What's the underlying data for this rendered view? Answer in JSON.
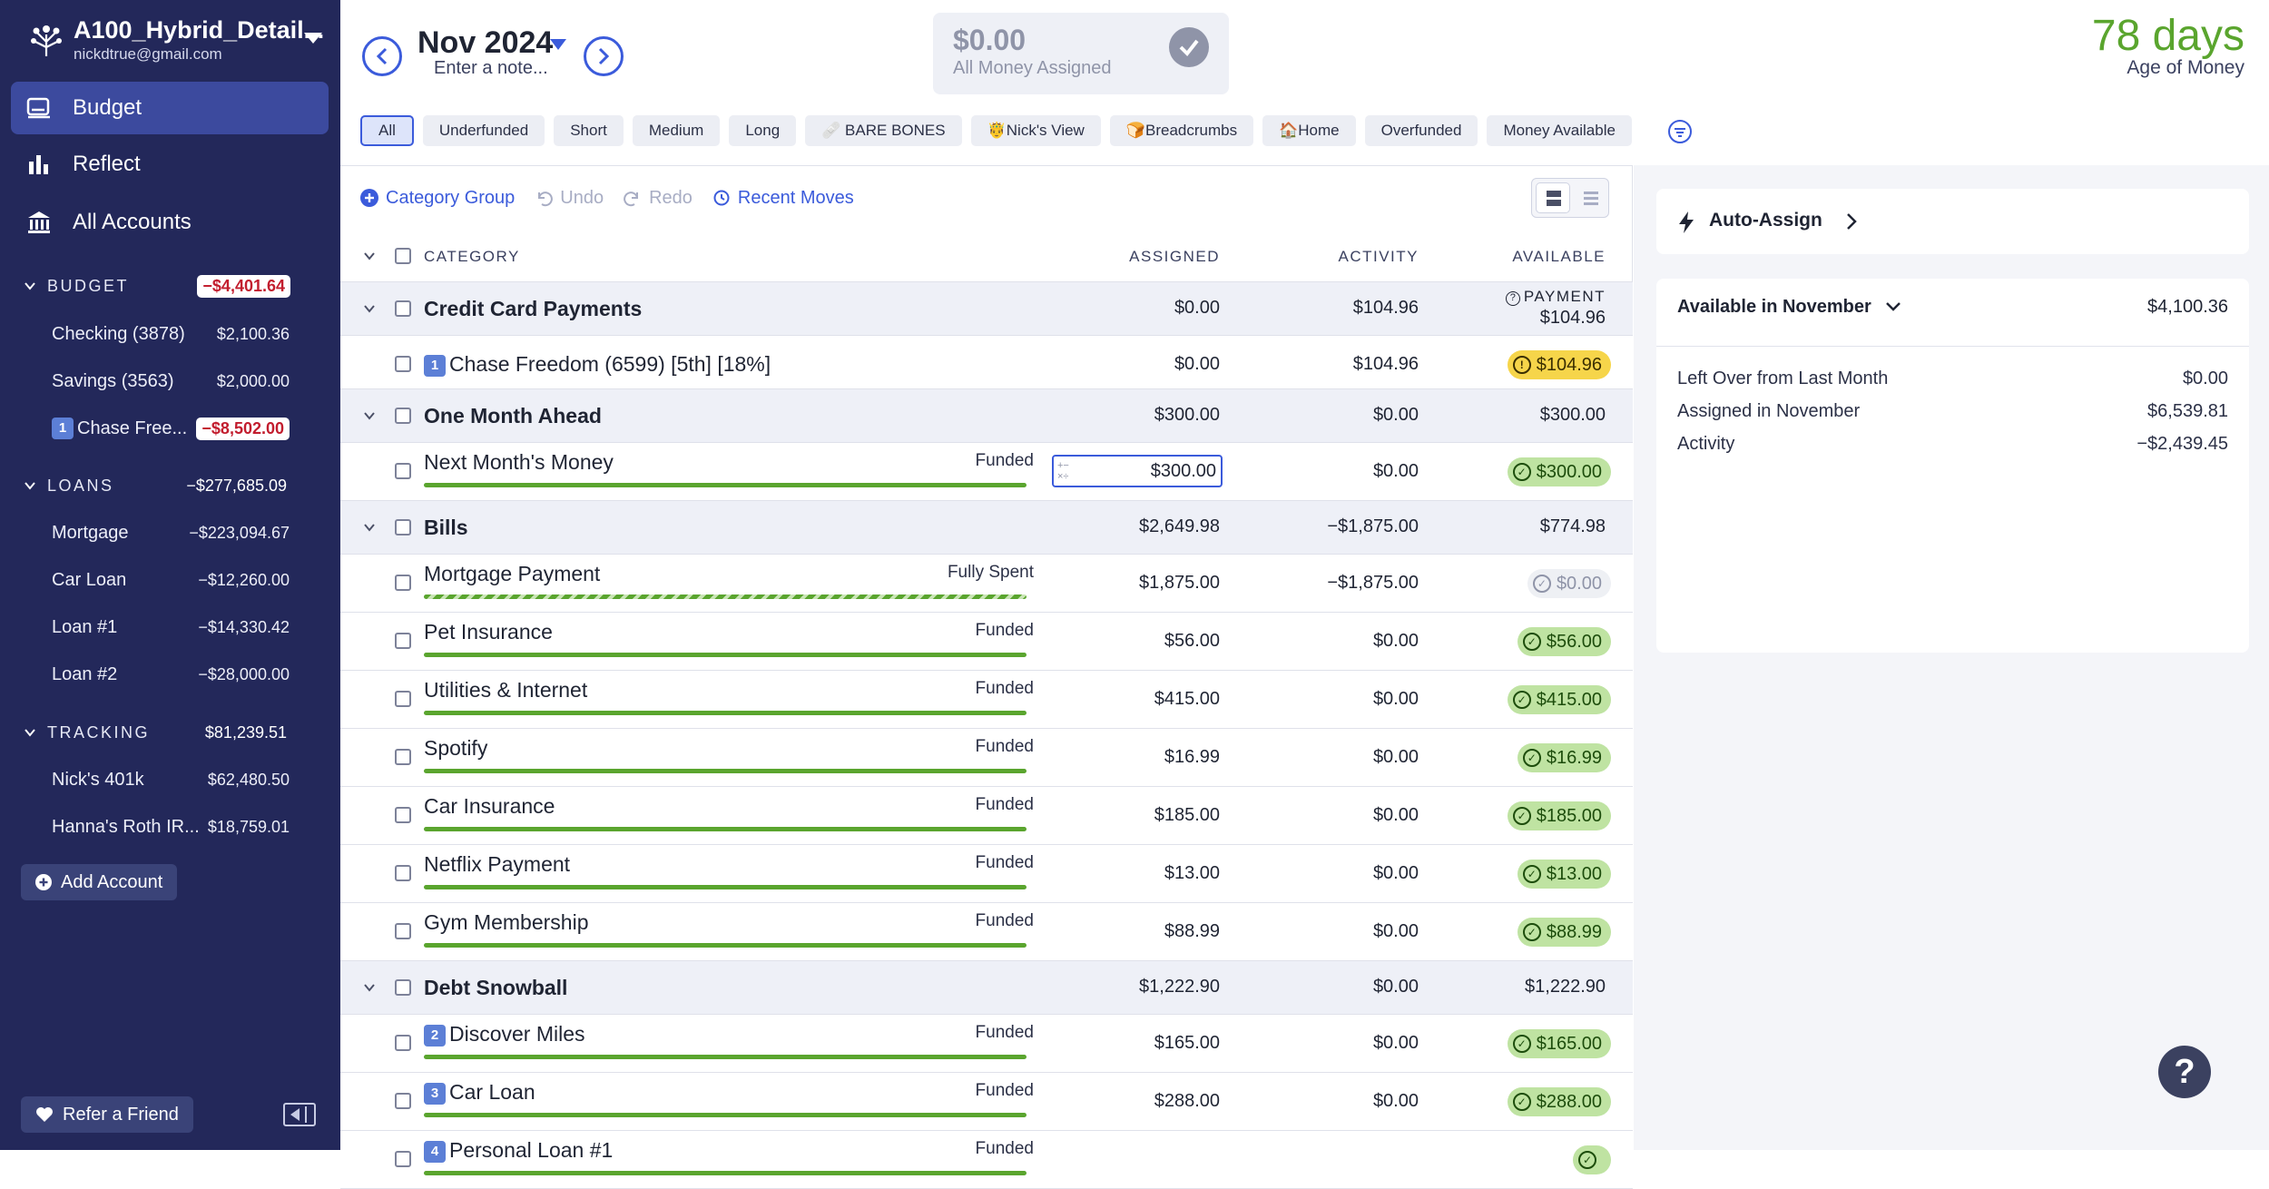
{
  "sidebar": {
    "plan_name": "A100_Hybrid_Detail...",
    "email": "nickdtrue@gmail.com",
    "nav": [
      {
        "label": "Budget",
        "icon": "budget-icon"
      },
      {
        "label": "Reflect",
        "icon": "bar-chart-icon"
      },
      {
        "label": "All Accounts",
        "icon": "bank-icon"
      }
    ],
    "sections": [
      {
        "name": "BUDGET",
        "total": "−$4,401.64",
        "total_negative": true,
        "accounts": [
          {
            "name": "Checking (3878)",
            "amount": "$2,100.36"
          },
          {
            "name": "Savings (3563)",
            "amount": "$2,000.00"
          },
          {
            "name": "1️⃣ Chase Freedom (6599)",
            "display_name": "Chase Free...",
            "badge": "1",
            "amount": "−$8,502.00",
            "negative": true
          }
        ]
      },
      {
        "name": "LOANS",
        "total": "−$277,685.09",
        "accounts": [
          {
            "name": "Mortgage",
            "amount": "−$223,094.67"
          },
          {
            "name": "Car Loan",
            "amount": "−$12,260.00"
          },
          {
            "name": "Loan #1",
            "amount": "−$14,330.42"
          },
          {
            "name": "Loan #2",
            "amount": "−$28,000.00"
          }
        ]
      },
      {
        "name": "TRACKING",
        "total": "$81,239.51",
        "accounts": [
          {
            "name": "Nick's 401k",
            "amount": "$62,480.50"
          },
          {
            "name": "Hanna's Roth IR...",
            "amount": "$18,759.01"
          }
        ]
      }
    ],
    "add_account_label": "Add Account",
    "refer_label": "Refer a Friend"
  },
  "header": {
    "month": "Nov 2024",
    "note_placeholder": "Enter a note...",
    "assigned_value": "$0.00",
    "assigned_label": "All Money Assigned",
    "age_value": "78 days",
    "age_label": "Age of Money",
    "filters": [
      "All",
      "Underfunded",
      "Short",
      "Medium",
      "Long",
      "🩹 BARE BONES",
      "🤴Nick's View",
      "🍞Breadcrumbs",
      "🏠Home",
      "Overfunded",
      "Money Available"
    ],
    "active_filter": "All"
  },
  "toolbar": {
    "category_group": "Category Group",
    "undo": "Undo",
    "redo": "Redo",
    "recent_moves": "Recent Moves"
  },
  "table": {
    "headers": {
      "category": "CATEGORY",
      "assigned": "ASSIGNED",
      "activity": "ACTIVITY",
      "available": "AVAILABLE"
    },
    "rows": [
      {
        "type": "group",
        "name": "Credit Card Payments",
        "assigned": "$0.00",
        "activity": "$104.96",
        "available_label": "PAYMENT",
        "available": "$104.96"
      },
      {
        "type": "cat",
        "badge": "1",
        "name": "Chase Freedom (6599) [5th] [18%]",
        "assigned": "$0.00",
        "activity": "$104.96",
        "available": "$104.96",
        "pill": "yellow"
      },
      {
        "type": "group",
        "name": "One Month Ahead",
        "assigned": "$300.00",
        "activity": "$0.00",
        "available": "$300.00"
      },
      {
        "type": "cat",
        "name": "Next Month's Money",
        "status": "Funded",
        "assigned": "$300.00",
        "activity": "$0.00",
        "available": "$300.00",
        "pill": "green",
        "editing": true
      },
      {
        "type": "group",
        "name": "Bills",
        "assigned": "$2,649.98",
        "activity": "−$1,875.00",
        "available": "$774.98"
      },
      {
        "type": "cat",
        "name": "Mortgage Payment",
        "status": "Fully Spent",
        "assigned": "$1,875.00",
        "activity": "−$1,875.00",
        "available": "$0.00",
        "pill": "grey",
        "striped": true
      },
      {
        "type": "cat",
        "name": "Pet Insurance",
        "status": "Funded",
        "assigned": "$56.00",
        "activity": "$0.00",
        "available": "$56.00",
        "pill": "green"
      },
      {
        "type": "cat",
        "name": "Utilities & Internet",
        "status": "Funded",
        "assigned": "$415.00",
        "activity": "$0.00",
        "available": "$415.00",
        "pill": "green"
      },
      {
        "type": "cat",
        "name": "Spotify",
        "status": "Funded",
        "assigned": "$16.99",
        "activity": "$0.00",
        "available": "$16.99",
        "pill": "green"
      },
      {
        "type": "cat",
        "name": "Car Insurance",
        "status": "Funded",
        "assigned": "$185.00",
        "activity": "$0.00",
        "available": "$185.00",
        "pill": "green"
      },
      {
        "type": "cat",
        "name": "Netflix Payment",
        "status": "Funded",
        "assigned": "$13.00",
        "activity": "$0.00",
        "available": "$13.00",
        "pill": "green"
      },
      {
        "type": "cat",
        "name": "Gym Membership",
        "status": "Funded",
        "assigned": "$88.99",
        "activity": "$0.00",
        "available": "$88.99",
        "pill": "green"
      },
      {
        "type": "group",
        "name": "Debt Snowball",
        "assigned": "$1,222.90",
        "activity": "$0.00",
        "available": "$1,222.90"
      },
      {
        "type": "cat",
        "badge": "2",
        "name": "Discover Miles",
        "status": "Funded",
        "assigned": "$165.00",
        "activity": "$0.00",
        "available": "$165.00",
        "pill": "green"
      },
      {
        "type": "cat",
        "badge": "3",
        "name": "Car Loan",
        "status": "Funded",
        "assigned": "$288.00",
        "activity": "$0.00",
        "available": "$288.00",
        "pill": "green"
      },
      {
        "type": "cat",
        "badge": "4",
        "name": "Personal Loan #1",
        "status": "Funded",
        "assigned": "",
        "activity": "",
        "available": "",
        "pill": "green",
        "cut_off": true
      }
    ]
  },
  "inspector": {
    "auto_assign": "Auto-Assign",
    "available_heading": "Available in November",
    "available_value": "$4,100.36",
    "items": [
      {
        "label": "Left Over from Last Month",
        "value": "$0.00"
      },
      {
        "label": "Assigned in November",
        "value": "$6,539.81"
      },
      {
        "label": "Activity",
        "value": "−$2,439.45"
      }
    ]
  },
  "colors": {
    "sidebar": "#23285a",
    "accent": "#3b5bdb",
    "funded": "#5aa52e",
    "pill_green": "#bfe3a2",
    "pill_yellow": "#f6d54a",
    "negative": "#c21d2e"
  }
}
